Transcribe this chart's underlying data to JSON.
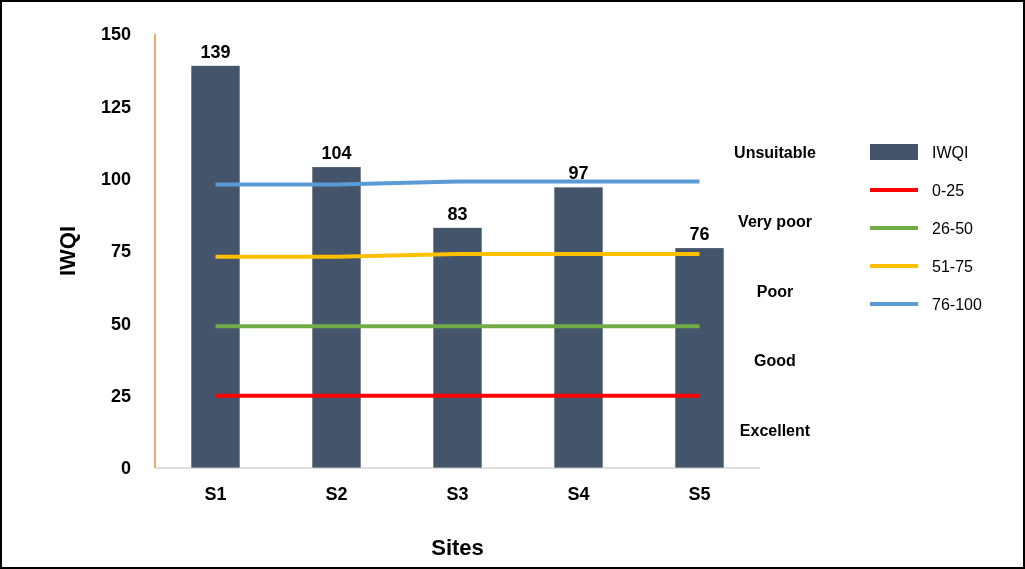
{
  "chart_data": {
    "type": "bar",
    "xlabel": "Sites",
    "ylabel": "IWQI",
    "categories": [
      "S1",
      "S2",
      "S3",
      "S4",
      "S5"
    ],
    "series": [
      {
        "name": "IWQI",
        "color": "#44546a",
        "values": [
          139,
          104,
          83,
          97,
          76
        ],
        "value_labels": [
          "139",
          "104",
          "83",
          "97",
          "76"
        ]
      },
      {
        "name": "0-25",
        "type": "line",
        "color": "#ff0000",
        "values": [
          25,
          25,
          25,
          25,
          25
        ]
      },
      {
        "name": "26-50",
        "type": "line",
        "color": "#70ad47",
        "values": [
          49,
          49,
          49,
          49,
          49
        ]
      },
      {
        "name": "51-75",
        "type": "line",
        "color": "#ffc000",
        "values": [
          73,
          73,
          74,
          74,
          74
        ]
      },
      {
        "name": "76-100",
        "type": "line",
        "color": "#5b9bd5",
        "values": [
          98,
          98,
          99,
          99,
          99
        ]
      }
    ],
    "ylim": [
      0,
      150
    ],
    "yticks": [
      0,
      25,
      50,
      75,
      100,
      125,
      150
    ],
    "grid": false,
    "legend": "right",
    "annotations": [
      "Unsuitable",
      "Very poor",
      "Poor",
      "Good",
      "Excellent"
    ]
  }
}
